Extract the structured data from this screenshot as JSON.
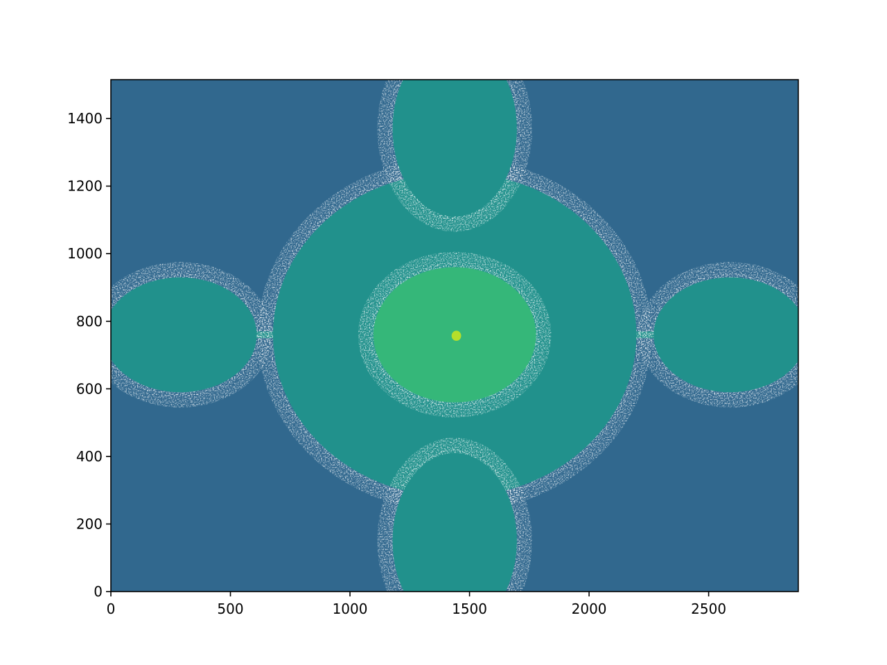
{
  "chart_data": {
    "type": "heatmap",
    "title": "",
    "xlabel": "",
    "ylabel": "",
    "xlim": [
      0,
      2875
    ],
    "ylim": [
      0,
      1515
    ],
    "x_ticks": [
      0,
      500,
      1000,
      1500,
      2000,
      2500
    ],
    "y_ticks": [
      0,
      200,
      400,
      600,
      800,
      1000,
      1200,
      1400
    ],
    "x_tick_labels": [
      "0",
      "500",
      "1000",
      "1500",
      "2000",
      "2500"
    ],
    "y_tick_labels": [
      "0",
      "200",
      "400",
      "600",
      "800",
      "1000",
      "1200",
      "1400"
    ],
    "grid": false,
    "colormap": "viridis",
    "background_color": "#31688e",
    "level_colors": {
      "outer": "#31688e",
      "middle": "#21918c",
      "inner": "#35b779",
      "core": "#b5de2b"
    },
    "gap_color": "#ffffff",
    "center": [
      1438,
      760
    ],
    "regions": [
      {
        "name": "central-oval",
        "level": "middle",
        "cx": 1438,
        "cy": 760,
        "rx": 760,
        "ry": 480
      },
      {
        "name": "inner-oval",
        "level": "inner",
        "cx": 1438,
        "cy": 760,
        "rx": 340,
        "ry": 200
      },
      {
        "name": "core-spot",
        "level": "core",
        "cx": 1445,
        "cy": 757,
        "rx": 20,
        "ry": 15
      },
      {
        "name": "left-lobe",
        "level": "middle",
        "cx": 290,
        "cy": 760,
        "rx": 320,
        "ry": 170
      },
      {
        "name": "right-lobe",
        "level": "middle",
        "cx": 2590,
        "cy": 760,
        "rx": 320,
        "ry": 170
      },
      {
        "name": "top-lobe",
        "level": "middle",
        "cx": 1438,
        "cy": 1370,
        "rx": 260,
        "ry": 260
      },
      {
        "name": "bottom-lobe",
        "level": "middle",
        "cx": 1438,
        "cy": 150,
        "rx": 260,
        "ry": 260
      }
    ]
  }
}
